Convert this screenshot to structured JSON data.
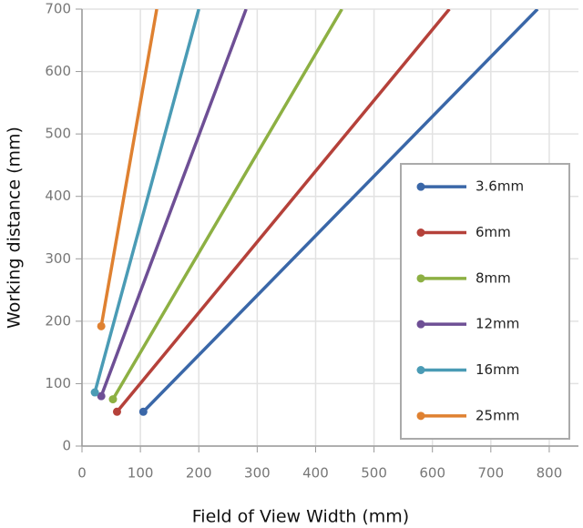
{
  "chart_data": {
    "type": "line",
    "x_label": "Field of View Width (mm)",
    "y_label": "Working distance (mm)",
    "xlim": [
      0,
      850
    ],
    "ylim": [
      0,
      700
    ],
    "xticks": [
      0,
      100,
      200,
      300,
      400,
      500,
      600,
      700,
      800
    ],
    "yticks": [
      0,
      100,
      200,
      300,
      400,
      500,
      600,
      700
    ],
    "grid": true,
    "legend": "right",
    "series": [
      {
        "name": "3.6mm",
        "color": "#3a67a8",
        "x": [
          105,
          780
        ],
        "values": [
          55,
          700
        ]
      },
      {
        "name": "6mm",
        "color": "#b5413a",
        "x": [
          60,
          629
        ],
        "values": [
          55,
          700
        ]
      },
      {
        "name": "8mm",
        "color": "#8db043",
        "x": [
          53,
          445
        ],
        "values": [
          75,
          700
        ]
      },
      {
        "name": "12mm",
        "color": "#6e4f95",
        "x": [
          33,
          281
        ],
        "values": [
          80,
          700
        ]
      },
      {
        "name": "16mm",
        "color": "#4a9bb5",
        "x": [
          22,
          200
        ],
        "values": [
          86,
          700
        ]
      },
      {
        "name": "25mm",
        "color": "#df8131",
        "x": [
          33,
          128
        ],
        "values": [
          192,
          700
        ]
      }
    ]
  }
}
